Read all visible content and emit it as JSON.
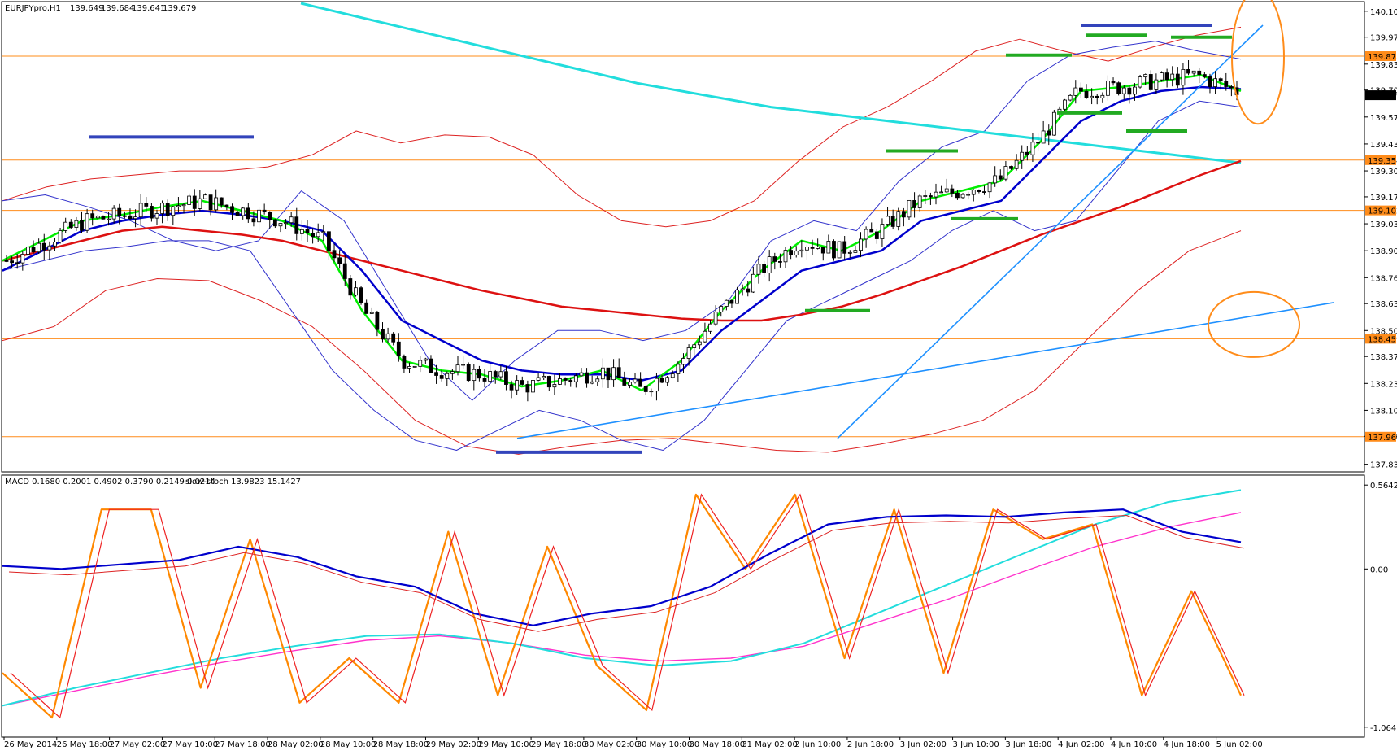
{
  "chart_data": [
    {
      "type": "candlestick",
      "title": "EURJPYpro,H1",
      "ohlc_readout": [
        "139.649",
        "139.684",
        "139.641",
        "139.679"
      ],
      "last_price": 139.679,
      "ylim": [
        137.8,
        140.14
      ],
      "y_tick_labels": [
        "140.100",
        "139.970",
        "139.835",
        "139.705",
        "139.570",
        "139.435",
        "139.300",
        "139.170",
        "139.035",
        "138.900",
        "138.765",
        "138.635",
        "138.500",
        "138.370",
        "138.235",
        "138.100",
        "137.970",
        "137.830"
      ],
      "horizontal_levels": [
        139.875,
        139.354,
        139.102,
        138.459,
        137.968
      ],
      "x_tick_labels": [
        "26 May 2014",
        "26 May 18:00",
        "27 May 02:00",
        "27 May 10:00",
        "27 May 18:00",
        "28 May 02:00",
        "28 May 10:00",
        "28 May 18:00",
        "29 May 02:00",
        "29 May 10:00",
        "29 May 18:00",
        "30 May 02:00",
        "30 May 10:00",
        "30 May 18:00",
        "31 May 02:00",
        "2 Jun 10:00",
        "2 Jun 18:00",
        "3 Jun 02:00",
        "3 Jun 10:00",
        "3 Jun 18:00",
        "4 Jun 02:00",
        "4 Jun 10:00",
        "4 Jun 18:00",
        "5 Jun 02:00"
      ],
      "series": [
        {
          "values": [
            138.85,
            138.95,
            139.05,
            139.08,
            139.12,
            139.15,
            139.1,
            139.05,
            138.95,
            138.6,
            138.35,
            138.3,
            138.28,
            138.22,
            138.25,
            138.3,
            138.2,
            138.35,
            138.6,
            138.8,
            138.95,
            138.9,
            139.0,
            139.15,
            139.2,
            139.25,
            139.45,
            139.7,
            139.72,
            139.75,
            139.78,
            139.7
          ]
        },
        {
          "values": [
            138.8,
            138.9,
            139.0,
            139.05,
            139.08,
            139.1,
            139.08,
            139.05,
            139.0,
            138.8,
            138.55,
            138.45,
            138.35,
            138.3,
            138.28,
            138.28,
            138.25,
            138.3,
            138.5,
            138.65,
            138.8,
            138.85,
            138.9,
            139.05,
            139.1,
            139.15,
            139.35,
            139.55,
            139.65,
            139.7,
            139.72,
            139.71
          ]
        },
        {
          "values": [
            138.85,
            138.9,
            138.95,
            139.0,
            139.02,
            139.0,
            138.98,
            138.95,
            138.9,
            138.85,
            138.8,
            138.75,
            138.7,
            138.66,
            138.62,
            138.6,
            138.58,
            138.56,
            138.55,
            138.55,
            138.58,
            138.62,
            138.68,
            138.75,
            138.82,
            138.9,
            138.98,
            139.05,
            139.12,
            139.2,
            139.28,
            139.35
          ]
        },
        {
          "values": [
            140.14,
            140.06,
            139.98,
            139.9,
            139.82,
            139.74,
            139.68,
            139.62,
            139.58,
            139.54,
            139.5,
            139.46,
            139.42,
            139.38,
            139.34
          ]
        },
        {
          "values": [
            139.15,
            139.22,
            139.26,
            139.28,
            139.3,
            139.3,
            139.32,
            139.38,
            139.5,
            139.44,
            139.48,
            139.47,
            139.38,
            139.18,
            139.05,
            139.02,
            139.05,
            139.15,
            139.35,
            139.52,
            139.62,
            139.75,
            139.9,
            139.96,
            139.9,
            139.85,
            139.92,
            139.98,
            140.02
          ]
        },
        {
          "values": [
            138.45,
            138.52,
            138.7,
            138.76,
            138.75,
            138.65,
            138.52,
            138.3,
            138.05,
            137.92,
            137.88,
            137.92,
            137.95,
            137.96,
            137.93,
            137.9,
            137.89,
            137.93,
            137.98,
            138.05,
            138.2,
            138.45,
            138.7,
            138.9,
            139.0
          ]
        },
        {
          "values": [
            139.15,
            139.18,
            139.12,
            139.05,
            138.95,
            138.9,
            138.95,
            139.2,
            139.05,
            138.7,
            138.35,
            138.15,
            138.35,
            138.5,
            138.5,
            138.45,
            138.5,
            138.65,
            138.95,
            139.05,
            139.0,
            139.25,
            139.42,
            139.5,
            139.75,
            139.88,
            139.92,
            139.95,
            139.9,
            139.86
          ]
        },
        {
          "values": [
            138.8,
            138.85,
            138.9,
            138.92,
            138.95,
            138.95,
            138.9,
            138.6,
            138.3,
            138.1,
            137.95,
            137.9,
            138.0,
            138.1,
            138.05,
            137.95,
            137.9,
            138.05,
            138.3,
            138.55,
            138.65,
            138.75,
            138.85,
            139.0,
            139.1,
            139.0,
            139.05,
            139.3,
            139.55,
            139.65,
            139.62
          ]
        },
        {
          "values": [
            137.96,
            138.64
          ]
        },
        {
          "values": [
            137.96,
            140.03
          ]
        }
      ]
    },
    {
      "type": "line",
      "title": "MACD 0.1680 0.2001 0.4902 0.3790 0.2149 0.0214",
      "subtitle": "slow-stoch 13.9823 15.1427",
      "ylim": [
        -1.12,
        0.62
      ],
      "y_tick_labels": [
        "0.5642",
        "0.00",
        "-1.0641"
      ],
      "series": [
        {
          "values": [
            0.02,
            0.0,
            0.03,
            0.06,
            0.15,
            0.08,
            -0.05,
            -0.12,
            -0.3,
            -0.38,
            -0.3,
            -0.25,
            -0.12,
            0.1,
            0.3,
            0.35,
            0.36,
            0.35,
            0.38,
            0.4,
            0.25,
            0.18
          ]
        },
        {
          "values": [
            -0.92,
            -0.8,
            -0.7,
            -0.6,
            -0.52,
            -0.45,
            -0.44,
            -0.5,
            -0.6,
            -0.65,
            -0.62,
            -0.5,
            -0.3,
            -0.1,
            0.1,
            0.3,
            0.45,
            0.53
          ]
        },
        {
          "values": [
            -0.92,
            -0.82,
            -0.72,
            -0.63,
            -0.55,
            -0.48,
            -0.45,
            -0.5,
            -0.58,
            -0.62,
            -0.6,
            -0.52,
            -0.36,
            -0.2,
            -0.02,
            0.15,
            0.28,
            0.38
          ]
        },
        {
          "values": [
            -0.7,
            -1.0,
            0.4,
            0.4,
            -0.8,
            0.2,
            -0.9,
            -0.6,
            -0.9,
            0.25,
            -0.85,
            0.15,
            -0.65,
            -0.95,
            0.5,
            0.0,
            0.5,
            -0.6,
            0.4,
            -0.7,
            0.4,
            0.2,
            0.3,
            -0.85,
            -0.15,
            -0.85
          ]
        }
      ]
    }
  ],
  "colors": {
    "green_ma": "#00ee00",
    "blue_ma": "#0000cc",
    "red_ma": "#dd1111",
    "aqua_ma": "#22dddd",
    "bollinger_upper_lower_blue": "#3333cc",
    "envelope_red": "#dd2222",
    "trendline": "#1e90ff",
    "level_orange": "#ff8c1a",
    "marker_blue": "#3344bb",
    "marker_green": "#22aa22",
    "stoch_main": "#ff8800",
    "stoch_signal": "#ee2222",
    "macd_main": "#0000cc",
    "macd_signal": "#dd2222",
    "macd_aqua": "#22dddd",
    "macd_magenta": "#ff33cc"
  }
}
